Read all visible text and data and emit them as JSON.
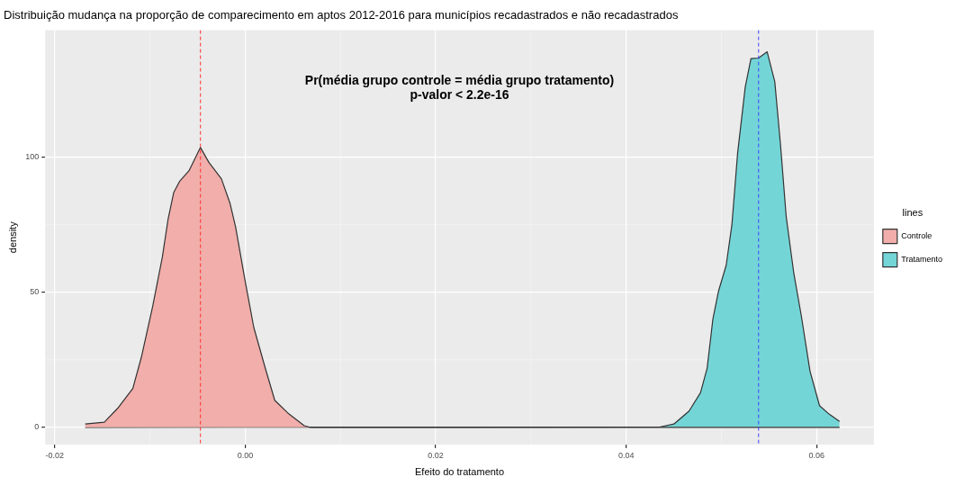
{
  "chart_data": {
    "type": "area",
    "title": "Distribuição mudança na proporção de comparecimento em aptos 2012-2016 para municípios recadastrados e não recadastrados",
    "xlabel": "Efeito do tratamento",
    "ylabel": "density",
    "legend_title": "lines",
    "legend": "right",
    "grid": true,
    "annotations": [
      "Pr(média grupo controle = média grupo tratamento)",
      "p-valor < 2.2e-16"
    ],
    "xlim": [
      -0.021,
      0.066
    ],
    "xticks": [
      {
        "value": -0.02,
        "label": "-0.02"
      },
      {
        "value": 0,
        "label": "0.00"
      },
      {
        "value": 0.02,
        "label": "0.02"
      },
      {
        "value": 0.04,
        "label": "0.04"
      },
      {
        "value": 0.06,
        "label": "0.06"
      }
    ],
    "ylim": [
      -6.4,
      147
    ],
    "yticks": [
      0,
      50,
      100
    ],
    "series": [
      {
        "name": "Controle",
        "color": "#f1aeaa",
        "x": [
          -0.0168,
          -0.0148,
          -0.0134,
          -0.0118,
          -0.0109,
          -0.0097,
          -0.0087,
          -0.0081,
          -0.0075,
          -0.0069,
          -0.0059,
          -0.0047,
          -0.0038,
          -0.0025,
          -0.0016,
          -0.001,
          0,
          0.0009,
          0.0021,
          0.0031,
          0.0046,
          0.0062,
          0.0068,
          0.0624
        ],
        "values": [
          1.2,
          1.9,
          7,
          14.4,
          26,
          45,
          63,
          77,
          87,
          91,
          95,
          103.6,
          98,
          92,
          83,
          74,
          54,
          37,
          22,
          10,
          4.9,
          0.6,
          0,
          0
        ]
      },
      {
        "name": "Tratamento",
        "color": "#74d5d7",
        "x": [
          -0.0168,
          0.0435,
          0.045,
          0.0466,
          0.0478,
          0.0485,
          0.0491,
          0.0497,
          0.0505,
          0.0511,
          0.0517,
          0.0525,
          0.0531,
          0.0539,
          0.0548,
          0.0556,
          0.0562,
          0.0568,
          0.0576,
          0.0584,
          0.0593,
          0.0603,
          0.0613,
          0.0624
        ],
        "values": [
          0,
          0.1,
          1.2,
          6,
          12.8,
          21.9,
          40,
          50.5,
          60,
          75,
          101.5,
          126,
          136.5,
          136.7,
          139,
          128,
          104.7,
          78,
          57,
          41,
          20.8,
          8,
          4.9,
          2.2
        ]
      }
    ],
    "ref_lines": [
      {
        "axis": "x",
        "value": -0.0047,
        "color": "#ff3030",
        "line_style": "dashed"
      },
      {
        "axis": "x",
        "value": 0.0539,
        "color": "#4040ff",
        "line_style": "dashed"
      }
    ]
  }
}
